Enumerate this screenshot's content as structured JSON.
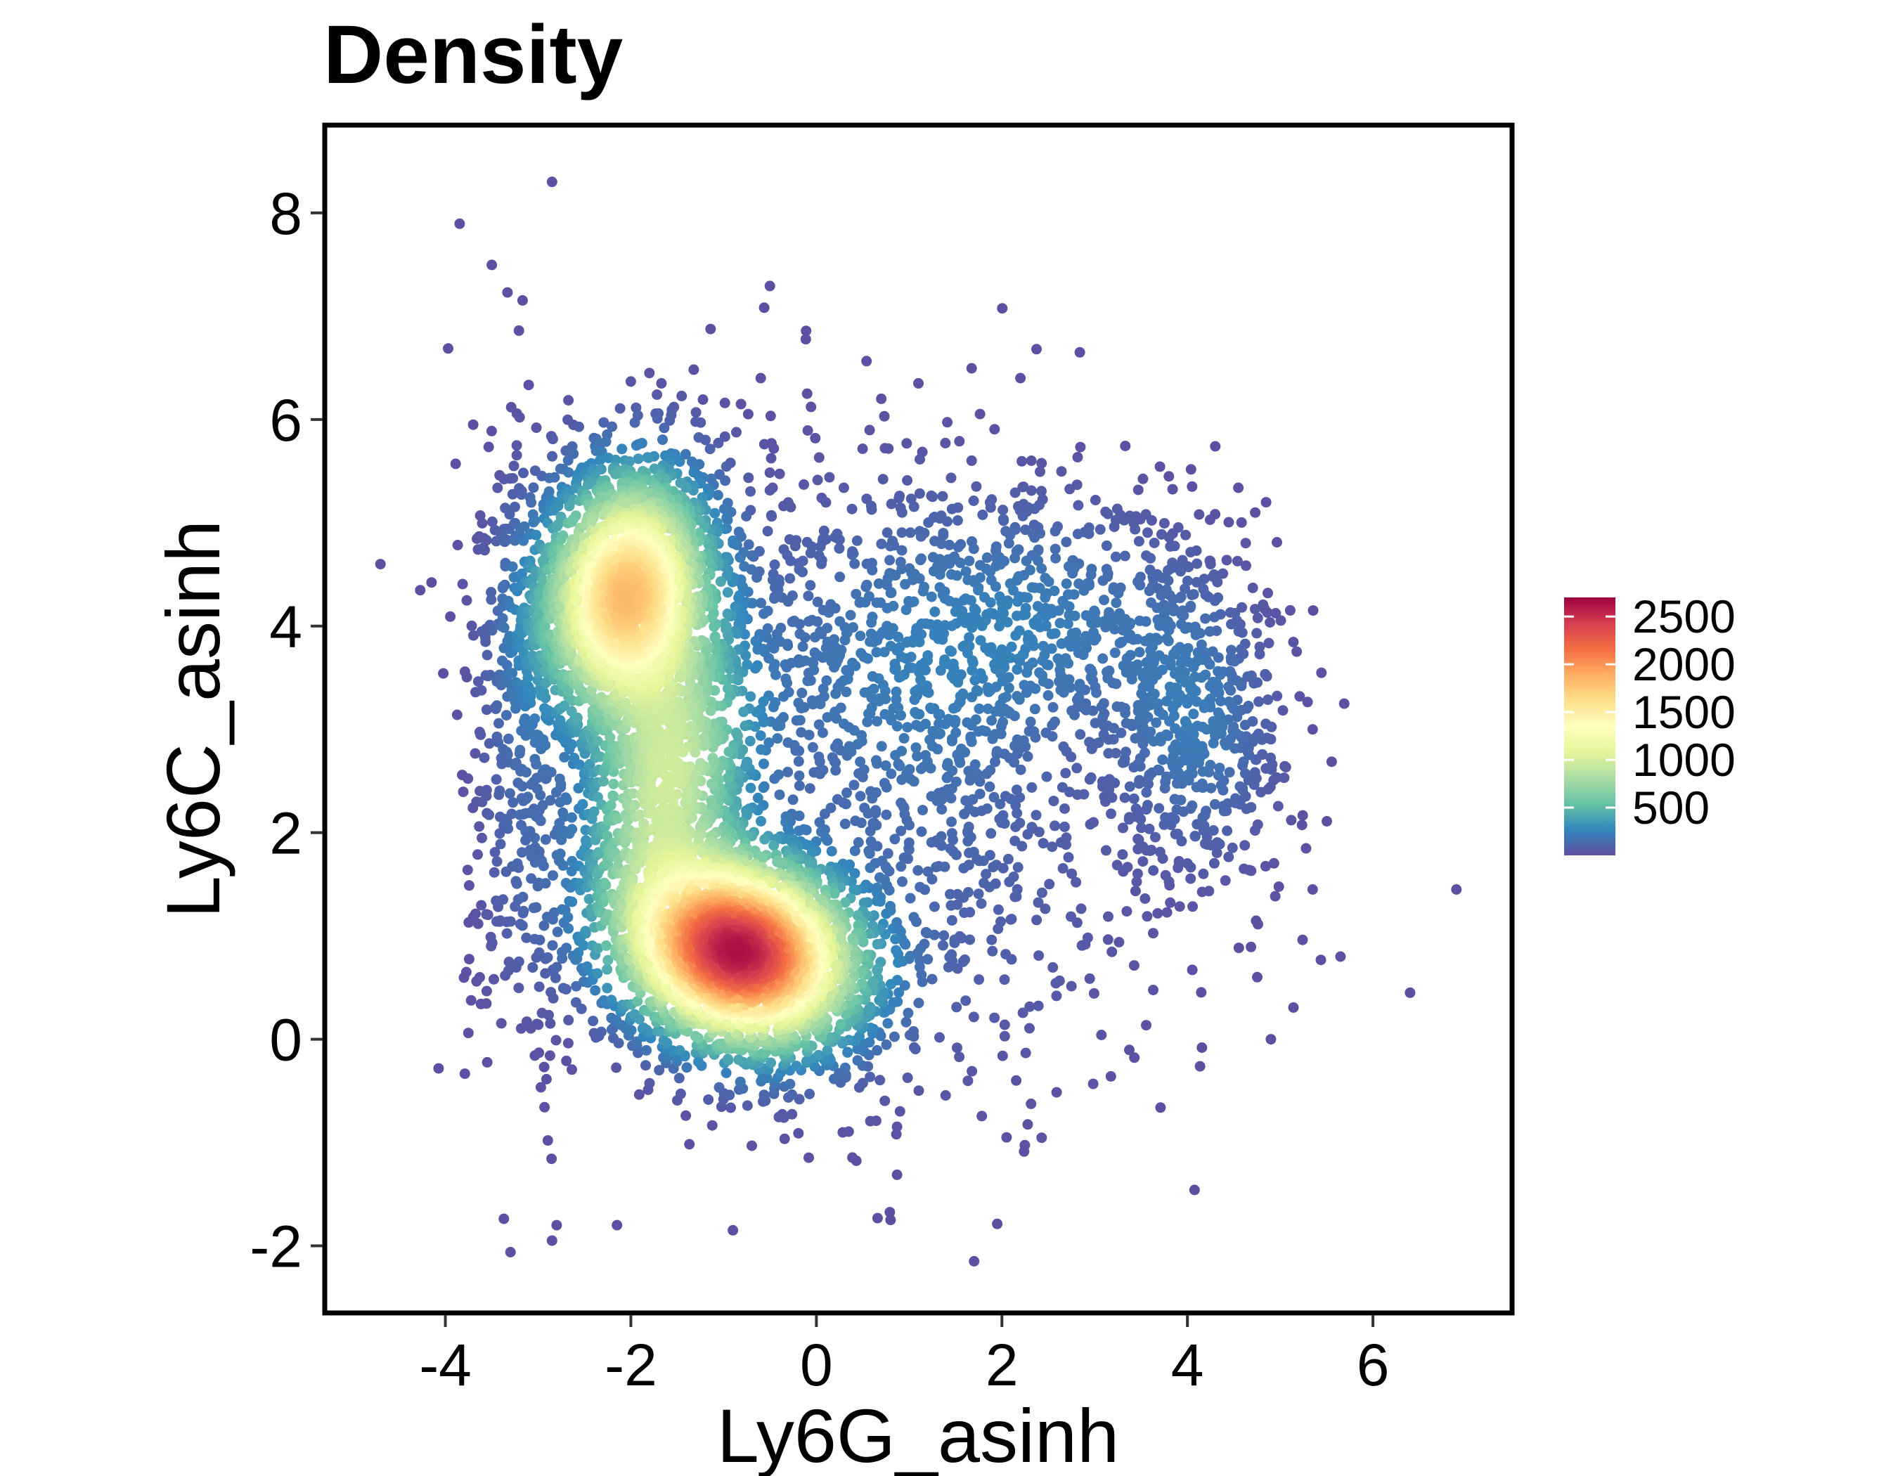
{
  "chart_data": {
    "type": "scatter",
    "title": "Density",
    "xlabel": "Ly6G_asinh",
    "ylabel": "Ly6C_asinh",
    "xlim": [
      -5.3,
      7.5
    ],
    "ylim": [
      -2.65,
      8.85
    ],
    "x_ticks": [
      -4,
      -2,
      0,
      2,
      4,
      6
    ],
    "x_tick_labels": [
      "-4",
      "-2",
      "0",
      "2",
      "4",
      "6"
    ],
    "y_ticks": [
      -2,
      0,
      2,
      4,
      6,
      8
    ],
    "y_tick_labels": [
      "-2",
      "0",
      "2",
      "4",
      "6",
      "8"
    ],
    "grid": false,
    "legend_position": "right",
    "colorbar": {
      "min": 0,
      "max": 2700,
      "ticks": [
        500,
        1000,
        1500,
        2000,
        2500
      ],
      "tick_labels": [
        "500",
        "1000",
        "1500",
        "2000",
        "2500"
      ],
      "colors": [
        "#5E4FA2",
        "#3288BD",
        "#66C2A5",
        "#ABDDA4",
        "#E6F598",
        "#FFFFBF",
        "#FEE08B",
        "#FDAE61",
        "#F46D43",
        "#D53E4F",
        "#9E0142"
      ]
    },
    "clusters": [
      {
        "center": [
          -2.0,
          4.3
        ],
        "peak_density": 1800
      },
      {
        "center": [
          -0.9,
          0.95
        ],
        "peak_density": 2600
      },
      {
        "center": [
          1.0,
          3.6
        ],
        "peak_density": 350
      },
      {
        "center": [
          4.2,
          3.0
        ],
        "peak_density": 300
      }
    ],
    "outliers": [
      [
        -2.85,
        8.3
      ],
      [
        -4.7,
        4.6
      ],
      [
        6.9,
        1.45
      ],
      [
        5.65,
        0.8
      ],
      [
        6.4,
        0.45
      ],
      [
        5.35,
        1.45
      ],
      [
        5.35,
        3.0
      ],
      [
        1.7,
        -2.15
      ],
      [
        -0.9,
        -1.85
      ],
      [
        -2.85,
        -1.95
      ],
      [
        -2.8,
        -1.8
      ],
      [
        -2.15,
        -1.8
      ],
      [
        -3.7,
        5.95
      ],
      [
        2.2,
        6.4
      ],
      [
        -0.1,
        6.25
      ],
      [
        3.8,
        5.45
      ],
      [
        4.05,
        5.35
      ],
      [
        4.9,
        0.0
      ],
      [
        2.05,
        -0.95
      ],
      [
        0.8,
        -1.75
      ],
      [
        -1.8,
        6.45
      ],
      [
        -0.6,
        6.4
      ],
      [
        0.7,
        6.2
      ],
      [
        1.1,
        6.35
      ]
    ]
  }
}
